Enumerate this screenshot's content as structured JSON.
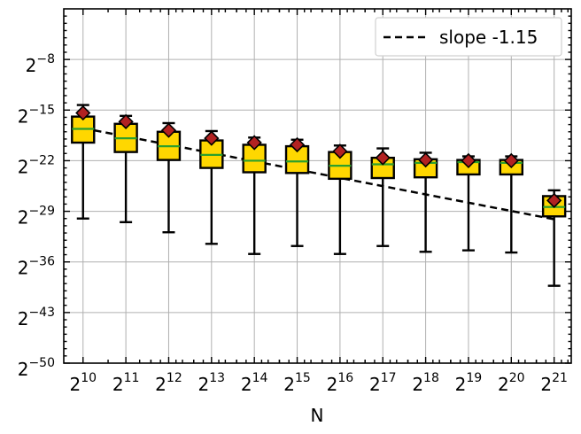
{
  "chart_data": {
    "type": "box",
    "xlabel": "N",
    "ylabel": "",
    "x_scale": "log2",
    "y_scale": "log2",
    "x": [
      1024,
      2048,
      4096,
      8192,
      16384,
      32768,
      65536,
      131072,
      262144,
      524288,
      1048576,
      2097152
    ],
    "x_tick_labels": [
      {
        "base": "2",
        "exp": "10"
      },
      {
        "base": "2",
        "exp": "11"
      },
      {
        "base": "2",
        "exp": "12"
      },
      {
        "base": "2",
        "exp": "13"
      },
      {
        "base": "2",
        "exp": "14"
      },
      {
        "base": "2",
        "exp": "15"
      },
      {
        "base": "2",
        "exp": "16"
      },
      {
        "base": "2",
        "exp": "17"
      },
      {
        "base": "2",
        "exp": "18"
      },
      {
        "base": "2",
        "exp": "19"
      },
      {
        "base": "2",
        "exp": "20"
      },
      {
        "base": "2",
        "exp": "21"
      }
    ],
    "y_tick_labels": [
      {
        "base": "2",
        "exp": "−8"
      },
      {
        "base": "2",
        "exp": "−15"
      },
      {
        "base": "2",
        "exp": "−22"
      },
      {
        "base": "2",
        "exp": "−29"
      },
      {
        "base": "2",
        "exp": "−36"
      },
      {
        "base": "2",
        "exp": "−43"
      },
      {
        "base": "2",
        "exp": "−50"
      }
    ],
    "y_tick_log2": [
      -8,
      -15,
      -22,
      -29,
      -36,
      -43,
      -50
    ],
    "ylim_log2": [
      -50,
      -1
    ],
    "xlim_log2": [
      9.55,
      21.4
    ],
    "grid": true,
    "legend_position": "top-right",
    "boxes_log2": [
      {
        "whisker_low": -30.0,
        "q1": -19.5,
        "median": -17.6,
        "q3": -15.9,
        "whisker_high": -14.3,
        "mean": -15.4
      },
      {
        "whisker_low": -30.5,
        "q1": -20.8,
        "median": -18.9,
        "q3": -16.9,
        "whisker_high": -15.8,
        "mean": -16.6
      },
      {
        "whisker_low": -31.9,
        "q1": -21.9,
        "median": -20.0,
        "q3": -18.0,
        "whisker_high": -16.8,
        "mean": -17.8
      },
      {
        "whisker_low": -33.5,
        "q1": -23.0,
        "median": -21.2,
        "q3": -19.2,
        "whisker_high": -17.9,
        "mean": -18.9
      },
      {
        "whisker_low": -34.9,
        "q1": -23.6,
        "median": -22.0,
        "q3": -19.8,
        "whisker_high": -18.8,
        "mean": -19.5
      },
      {
        "whisker_low": -33.8,
        "q1": -23.7,
        "median": -22.1,
        "q3": -20.0,
        "whisker_high": -19.1,
        "mean": -19.8
      },
      {
        "whisker_low": -34.9,
        "q1": -24.5,
        "median": -22.7,
        "q3": -20.8,
        "whisker_high": -19.9,
        "mean": -20.7
      },
      {
        "whisker_low": -33.8,
        "q1": -24.4,
        "median": -22.5,
        "q3": -21.6,
        "whisker_high": -20.3,
        "mean": -21.6
      },
      {
        "whisker_low": -34.6,
        "q1": -24.3,
        "median": -22.3,
        "q3": -21.8,
        "whisker_high": -20.9,
        "mean": -21.9
      },
      {
        "whisker_low": -34.4,
        "q1": -23.9,
        "median": -22.2,
        "q3": -21.9,
        "whisker_high": -21.4,
        "mean": -22.0
      },
      {
        "whisker_low": -34.7,
        "q1": -23.9,
        "median": -22.3,
        "q3": -21.9,
        "whisker_high": -21.4,
        "mean": -22.0
      },
      {
        "whisker_low": -39.3,
        "q1": -29.7,
        "median": -28.4,
        "q3": -26.9,
        "whisker_high": -26.1,
        "mean": -27.5
      }
    ],
    "fit_line": {
      "name": "slope -1.15",
      "slope": -1.15,
      "points_log2": [
        [
          10,
          -17.5
        ],
        [
          21,
          -30.1
        ]
      ]
    },
    "colors": {
      "box_fill": "#FFD700",
      "box_edge": "#000000",
      "median": "#2CA02C",
      "mean_marker": "#B22222",
      "fit_line": "#000000",
      "grid": "#B0B0B0"
    }
  }
}
